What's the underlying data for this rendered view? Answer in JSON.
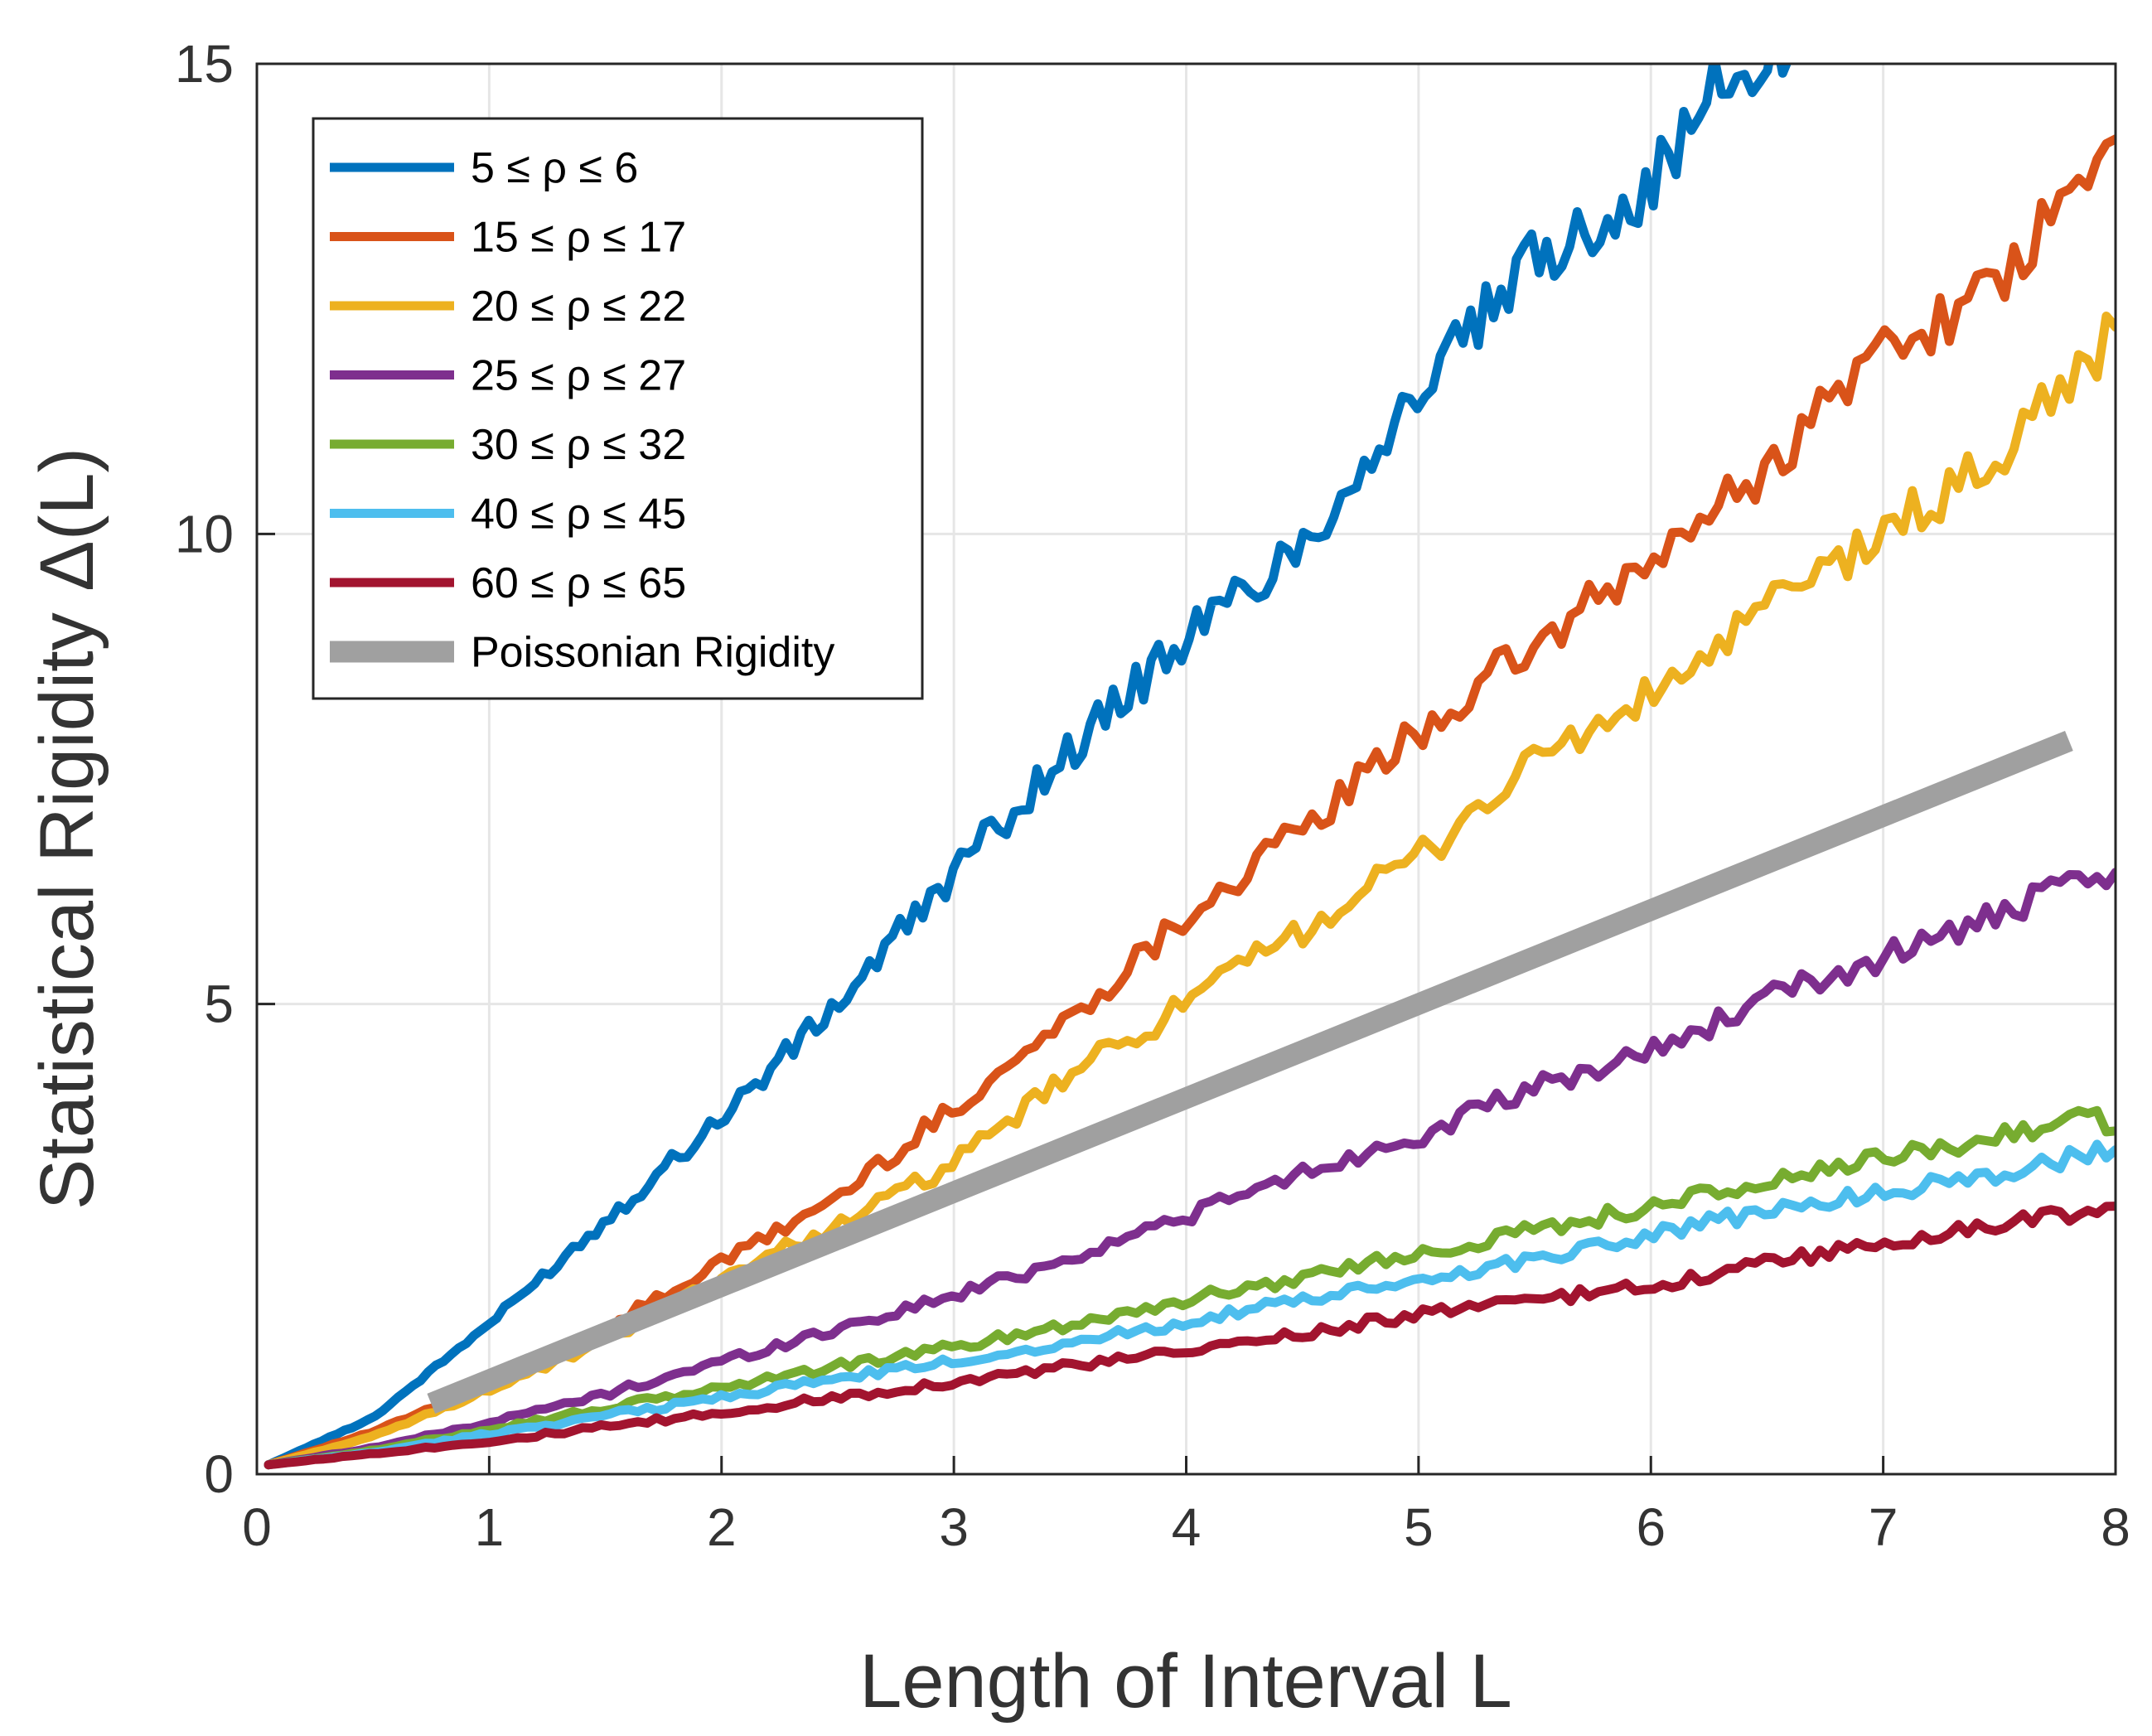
{
  "chart_data": {
    "type": "line",
    "title": "",
    "xlabel": "Length of Interval L",
    "ylabel": "Statistical Rigidity Δ(L)",
    "xlim": [
      0,
      8
    ],
    "ylim": [
      0,
      15
    ],
    "xticks": [
      "0",
      "1",
      "2",
      "3",
      "4",
      "5",
      "6",
      "7",
      "8"
    ],
    "yticks": [
      "0",
      "5",
      "10",
      "15"
    ],
    "grid": true,
    "legend_position": "top-left",
    "series": [
      {
        "name": "5 ≤ ρ ≤ 6",
        "color": "#0072BD",
        "points": [
          [
            0.05,
            0.1
          ],
          [
            0.5,
            0.6
          ],
          [
            1.0,
            1.6
          ],
          [
            1.5,
            2.7
          ],
          [
            2.0,
            3.8
          ],
          [
            2.5,
            5.0
          ],
          [
            3.0,
            6.4
          ],
          [
            3.5,
            7.7
          ],
          [
            4.0,
            8.9
          ],
          [
            4.5,
            9.9
          ],
          [
            5.0,
            11.5
          ],
          [
            5.5,
            12.9
          ],
          [
            6.0,
            13.7
          ],
          [
            6.3,
            14.8
          ],
          [
            6.6,
            15.1
          ]
        ]
      },
      {
        "name": "15 ≤ ρ ≤ 17",
        "color": "#D95319",
        "points": [
          [
            0.05,
            0.1
          ],
          [
            0.5,
            0.45
          ],
          [
            1.0,
            0.95
          ],
          [
            1.5,
            1.55
          ],
          [
            2.0,
            2.25
          ],
          [
            2.5,
            2.95
          ],
          [
            3.0,
            3.9
          ],
          [
            3.5,
            4.85
          ],
          [
            4.0,
            5.95
          ],
          [
            4.5,
            6.85
          ],
          [
            5.0,
            7.9
          ],
          [
            5.5,
            8.8
          ],
          [
            6.0,
            9.7
          ],
          [
            6.5,
            10.7
          ],
          [
            7.0,
            12.0
          ],
          [
            7.5,
            12.6
          ],
          [
            8.0,
            14.2
          ]
        ]
      },
      {
        "name": "20 ≤ ρ ≤ 22",
        "color": "#EDB120",
        "points": [
          [
            0.05,
            0.1
          ],
          [
            0.5,
            0.4
          ],
          [
            1.0,
            0.9
          ],
          [
            1.5,
            1.4
          ],
          [
            2.0,
            2.1
          ],
          [
            2.5,
            2.65
          ],
          [
            3.0,
            3.3
          ],
          [
            3.5,
            4.25
          ],
          [
            4.0,
            5.0
          ],
          [
            4.5,
            5.8
          ],
          [
            5.0,
            6.55
          ],
          [
            5.5,
            7.6
          ],
          [
            6.0,
            8.25
          ],
          [
            6.5,
            9.2
          ],
          [
            7.0,
            10.0
          ],
          [
            7.5,
            10.8
          ],
          [
            8.0,
            12.2
          ]
        ]
      },
      {
        "name": "25 ≤ ρ ≤ 27",
        "color": "#7E2F8E",
        "points": [
          [
            0.05,
            0.1
          ],
          [
            0.5,
            0.28
          ],
          [
            1.0,
            0.55
          ],
          [
            1.5,
            0.85
          ],
          [
            2.0,
            1.2
          ],
          [
            2.5,
            1.55
          ],
          [
            3.0,
            1.9
          ],
          [
            3.5,
            2.3
          ],
          [
            4.0,
            2.75
          ],
          [
            4.5,
            3.2
          ],
          [
            5.0,
            3.6
          ],
          [
            5.5,
            4.1
          ],
          [
            6.0,
            4.5
          ],
          [
            6.5,
            5.05
          ],
          [
            7.0,
            5.5
          ],
          [
            7.5,
            5.95
          ],
          [
            8.0,
            6.4
          ]
        ]
      },
      {
        "name": "30 ≤ ρ ≤ 32",
        "color": "#77AC30",
        "points": [
          [
            0.05,
            0.1
          ],
          [
            0.5,
            0.25
          ],
          [
            1.0,
            0.48
          ],
          [
            1.5,
            0.7
          ],
          [
            2.0,
            0.92
          ],
          [
            2.5,
            1.15
          ],
          [
            3.0,
            1.35
          ],
          [
            3.5,
            1.6
          ],
          [
            4.0,
            1.85
          ],
          [
            4.5,
            2.1
          ],
          [
            5.0,
            2.35
          ],
          [
            5.5,
            2.6
          ],
          [
            6.0,
            2.85
          ],
          [
            6.5,
            3.1
          ],
          [
            7.0,
            3.35
          ],
          [
            7.5,
            3.6
          ],
          [
            7.9,
            3.85
          ],
          [
            8.0,
            3.65
          ]
        ]
      },
      {
        "name": "40 ≤ ρ ≤ 45",
        "color": "#4DBEEE",
        "points": [
          [
            0.05,
            0.1
          ],
          [
            0.5,
            0.23
          ],
          [
            1.0,
            0.43
          ],
          [
            1.5,
            0.62
          ],
          [
            2.0,
            0.82
          ],
          [
            2.5,
            1.02
          ],
          [
            3.0,
            1.2
          ],
          [
            3.5,
            1.4
          ],
          [
            4.0,
            1.62
          ],
          [
            4.5,
            1.85
          ],
          [
            5.0,
            2.05
          ],
          [
            5.5,
            2.3
          ],
          [
            6.0,
            2.55
          ],
          [
            6.5,
            2.8
          ],
          [
            7.0,
            3.0
          ],
          [
            7.5,
            3.2
          ],
          [
            8.0,
            3.45
          ]
        ]
      },
      {
        "name": "60 ≤ ρ ≤ 65",
        "color": "#A2142F",
        "points": [
          [
            0.05,
            0.1
          ],
          [
            0.5,
            0.22
          ],
          [
            1.0,
            0.35
          ],
          [
            1.5,
            0.5
          ],
          [
            2.0,
            0.65
          ],
          [
            2.5,
            0.82
          ],
          [
            3.0,
            0.98
          ],
          [
            3.5,
            1.15
          ],
          [
            4.0,
            1.3
          ],
          [
            4.5,
            1.5
          ],
          [
            5.0,
            1.7
          ],
          [
            5.5,
            1.85
          ],
          [
            6.0,
            2.0
          ],
          [
            6.5,
            2.25
          ],
          [
            7.0,
            2.45
          ],
          [
            7.5,
            2.65
          ],
          [
            8.0,
            2.85
          ]
        ]
      },
      {
        "name": "Poissonian Rigidity",
        "color": "#A0A0A0",
        "points": [
          [
            0.75,
            0.75
          ],
          [
            7.8,
            7.8
          ]
        ]
      }
    ]
  }
}
